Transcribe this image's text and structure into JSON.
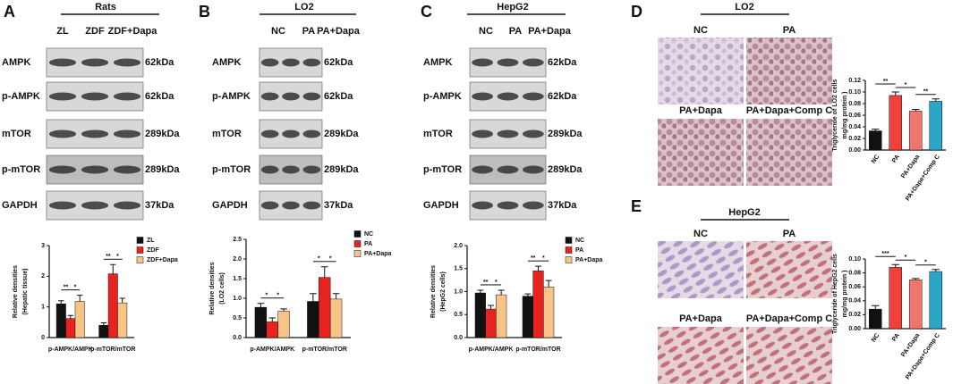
{
  "panels": [
    {
      "label": "A",
      "blot": {
        "header": "Rats",
        "lanes": [
          "ZL",
          "ZDF",
          "ZDF+Dapa"
        ],
        "rows": [
          {
            "protein": "AMPK",
            "size": "62kDa"
          },
          {
            "protein": "p-AMPK",
            "size": "62kDa"
          },
          {
            "protein": "mTOR",
            "size": "289kDa"
          },
          {
            "protein": "p-mTOR",
            "size": "289kDa"
          },
          {
            "protein": "GAPDH",
            "size": "37kDa"
          }
        ]
      }
    },
    {
      "label": "B",
      "blot": {
        "header": "LO2",
        "lanes": [
          "NC",
          "PA",
          "PA+Dapa"
        ],
        "rows": [
          {
            "protein": "AMPK",
            "size": "62kDa"
          },
          {
            "protein": "p-AMPK",
            "size": "62kDa"
          },
          {
            "protein": "mTOR",
            "size": "289kDa"
          },
          {
            "protein": "p-mTOR",
            "size": "289kDa"
          },
          {
            "protein": "GAPDH",
            "size": "37kDa"
          }
        ]
      }
    },
    {
      "label": "C",
      "blot": {
        "header": "HepG2",
        "lanes": [
          "NC",
          "PA",
          "PA+Dapa"
        ],
        "rows": [
          {
            "protein": "AMPK",
            "size": "62kDa"
          },
          {
            "protein": "p-AMPK",
            "size": "62kDa"
          },
          {
            "protein": "mTOR",
            "size": "289kDa"
          },
          {
            "protein": "p-mTOR",
            "size": "289kDa"
          },
          {
            "protein": "GAPDH",
            "size": "37kDa"
          }
        ]
      }
    },
    {
      "label": "D",
      "micro": {
        "header": "LO2",
        "images": [
          "NC",
          "PA",
          "PA+Dapa",
          "PA+Dapa+Comp C"
        ]
      }
    },
    {
      "label": "E",
      "micro": {
        "header": "HepG2",
        "images": [
          "NC",
          "PA",
          "PA+Dapa",
          "PA+Dapa+Comp C"
        ]
      }
    }
  ],
  "chart_data": [
    {
      "type": "grouped",
      "categories": [
        "p-AMPK/AMPK",
        "p-mTOR/mTOR"
      ],
      "ylim": [
        0,
        3
      ],
      "yticks": [
        0,
        1,
        2,
        3
      ],
      "y_label": [
        "Relative densities",
        "(Hepatic tissue)"
      ],
      "series": [
        {
          "name": "ZL",
          "color": "#111111",
          "values": [
            1.1,
            0.4
          ],
          "errors": [
            0.1,
            0.08
          ]
        },
        {
          "name": "ZDF",
          "color": "#e8231f",
          "values": [
            0.62,
            2.08
          ],
          "errors": [
            0.1,
            0.3
          ]
        },
        {
          "name": "ZDF+Dapa",
          "color": "#f7c487",
          "values": [
            1.18,
            1.13
          ],
          "errors": [
            0.2,
            0.15
          ]
        }
      ],
      "annotations": [
        {
          "text": "**",
          "category": 0,
          "from": 0,
          "to": 1
        },
        {
          "text": "*",
          "category": 0,
          "from": 1,
          "to": 2
        },
        {
          "text": "**",
          "category": 1,
          "from": 0,
          "to": 1
        },
        {
          "text": "*",
          "category": 1,
          "from": 1,
          "to": 2
        }
      ]
    },
    {
      "type": "grouped",
      "categories": [
        "p-AMPK/AMPK",
        "p-mTOR/mTOR"
      ],
      "ylim": [
        0,
        2.5
      ],
      "yticks": [
        {
          "value": 0,
          "label": "0.0"
        },
        0.5,
        {
          "value": 1,
          "label": "1.0"
        },
        1.5,
        {
          "value": 2,
          "label": "2.0"
        },
        2.5
      ],
      "y_label": [
        "Relative densities",
        "(LO2 cells)"
      ],
      "series": [
        {
          "name": "NC",
          "color": "#111111",
          "values": [
            0.77,
            0.92
          ],
          "errors": [
            0.1,
            0.2
          ]
        },
        {
          "name": "PA",
          "color": "#e8231f",
          "values": [
            0.4,
            1.53
          ],
          "errors": [
            0.1,
            0.27
          ]
        },
        {
          "name": "PA+Dapa",
          "color": "#f7c487",
          "values": [
            0.67,
            0.98
          ],
          "errors": [
            0.06,
            0.14
          ]
        }
      ],
      "annotations": [
        {
          "text": "*",
          "category": 0,
          "from": 0,
          "to": 1
        },
        {
          "text": "*",
          "category": 0,
          "from": 1,
          "to": 2
        },
        {
          "text": "*",
          "category": 1,
          "from": 0,
          "to": 1
        },
        {
          "text": "*",
          "category": 1,
          "from": 1,
          "to": 2
        }
      ]
    },
    {
      "type": "grouped",
      "categories": [
        "p-AMPK/AMPK",
        "p-mTOR/mTOR"
      ],
      "ylim": [
        0,
        2
      ],
      "yticks": [
        {
          "value": 0,
          "label": "0.0"
        },
        0.5,
        {
          "value": 1,
          "label": "1.0"
        },
        1.5,
        {
          "value": 2,
          "label": "2.0"
        }
      ],
      "y_label": [
        "Relative densities",
        "(HepG2 cells)"
      ],
      "series": [
        {
          "name": "NC",
          "color": "#111111",
          "values": [
            0.97,
            0.9
          ],
          "errors": [
            0.06,
            0.05
          ]
        },
        {
          "name": "PA",
          "color": "#e8231f",
          "values": [
            0.62,
            1.45
          ],
          "errors": [
            0.08,
            0.1
          ]
        },
        {
          "name": "PA+Dapa",
          "color": "#f7c487",
          "values": [
            0.93,
            1.1
          ],
          "errors": [
            0.1,
            0.14
          ]
        }
      ],
      "annotations": [
        {
          "text": "**",
          "category": 0,
          "from": 0,
          "to": 1
        },
        {
          "text": "*",
          "category": 0,
          "from": 1,
          "to": 2
        },
        {
          "text": "**",
          "category": 1,
          "from": 0,
          "to": 1
        },
        {
          "text": "*",
          "category": 1,
          "from": 1,
          "to": 2
        }
      ]
    },
    {
      "type": "bar",
      "categories": [
        "NC",
        "PA",
        "PA+Dapa",
        "PA+Dapa+Comp C"
      ],
      "values": [
        0.033,
        0.094,
        0.067,
        0.084
      ],
      "errors": [
        0.003,
        0.006,
        0.003,
        0.004
      ],
      "colors": [
        "#111111",
        "#f0403c",
        "#f0756e",
        "#2aa6c9"
      ],
      "ylim": [
        0,
        0.12
      ],
      "yticks": [
        {
          "value": 0,
          "label": "0.00"
        },
        {
          "value": 0.02,
          "label": "0.02"
        },
        {
          "value": 0.04,
          "label": "0.04"
        },
        {
          "value": 0.06,
          "label": "0.06"
        },
        {
          "value": 0.08,
          "label": "0.08"
        },
        {
          "value": 0.1,
          "label": "0.10"
        },
        {
          "value": 0.12,
          "label": "0.12"
        }
      ],
      "y_label": [
        "Triglyceride of LO2 cells",
        "mg/mg protein )"
      ],
      "annotations": [
        {
          "text": "**",
          "from": 0,
          "to": 1
        },
        {
          "text": "*",
          "from": 1,
          "to": 2
        },
        {
          "text": "**",
          "from": 2,
          "to": 3
        }
      ]
    },
    {
      "type": "bar",
      "categories": [
        "NC",
        "PA",
        "PA+Dapa",
        "PA+Dapa+Comp C"
      ],
      "values": [
        0.028,
        0.088,
        0.07,
        0.082
      ],
      "errors": [
        0.005,
        0.004,
        0.002,
        0.003
      ],
      "colors": [
        "#111111",
        "#f0403c",
        "#f0756e",
        "#2aa6c9"
      ],
      "ylim": [
        0,
        0.1
      ],
      "yticks": [
        {
          "value": 0,
          "label": "0.00"
        },
        {
          "value": 0.02,
          "label": "0.02"
        },
        {
          "value": 0.04,
          "label": "0.04"
        },
        {
          "value": 0.06,
          "label": "0.06"
        },
        {
          "value": 0.08,
          "label": "0.08"
        },
        {
          "value": 0.1,
          "label": "0.10"
        }
      ],
      "y_label": [
        "Triglyceride of HepG2 cells",
        "mg/mg protein )"
      ],
      "annotations": [
        {
          "text": "***",
          "from": 0,
          "to": 1
        },
        {
          "text": "*",
          "from": 1,
          "to": 2
        },
        {
          "text": "*",
          "from": 2,
          "to": 3
        }
      ]
    }
  ]
}
